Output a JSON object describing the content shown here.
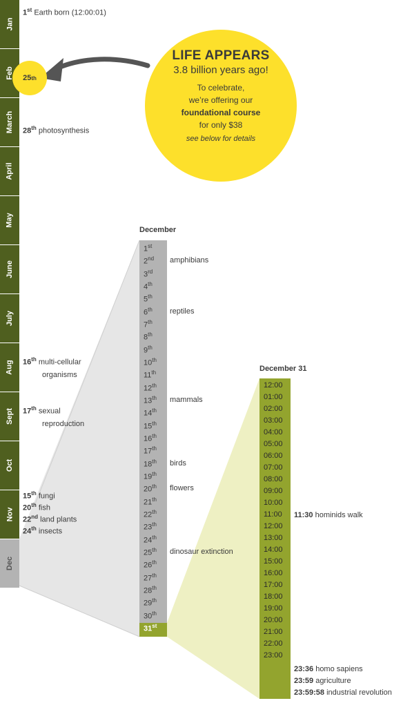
{
  "colors": {
    "olive": "#4f5f1f",
    "olive_light": "#93a42e",
    "yellow": "#fde02b",
    "grey": "#b3b3b3",
    "grey_light": "#e6e6e6",
    "yellow_light": "#eef0c3"
  },
  "months": [
    "Jan",
    "Feb",
    "March",
    "April",
    "May",
    "June",
    "July",
    "Aug",
    "Sept",
    "Oct",
    "Nov",
    "Dec"
  ],
  "year_events": {
    "jan": {
      "day": "1",
      "sup": "st",
      "text": "Earth born (12:00:01)"
    },
    "feb_dot": {
      "day": "25",
      "sup": "th"
    },
    "mar": {
      "day": "28",
      "sup": "th",
      "text": "photosynthesis"
    },
    "aug": {
      "day": "16",
      "sup": "th",
      "line1": "multi-cellular",
      "line2": "organisms"
    },
    "sept": {
      "day": "17",
      "sup": "th",
      "line1": "sexual",
      "line2": "reproduction"
    },
    "nov": [
      {
        "day": "15",
        "sup": "th",
        "text": "fungi"
      },
      {
        "day": "20",
        "sup": "th",
        "text": "fish"
      },
      {
        "day": "22",
        "sup": "nd",
        "text": "land plants"
      },
      {
        "day": "24",
        "sup": "th",
        "text": "insects"
      }
    ]
  },
  "bubble": {
    "title": "LIFE APPEARS",
    "subtitle": "3.8 billion years ago!",
    "line1": "To celebrate,",
    "line2": "we’re offering our",
    "line3": "foundational course",
    "line4": "for only $38",
    "note": "see below for details",
    "arrow_icon": "curved-arrow-left"
  },
  "december": {
    "title": "December",
    "days": [
      {
        "n": "1",
        "s": "st"
      },
      {
        "n": "2",
        "s": "nd"
      },
      {
        "n": "3",
        "s": "rd"
      },
      {
        "n": "4",
        "s": "th"
      },
      {
        "n": "5",
        "s": "th"
      },
      {
        "n": "6",
        "s": "th"
      },
      {
        "n": "7",
        "s": "th"
      },
      {
        "n": "8",
        "s": "th"
      },
      {
        "n": "9",
        "s": "th"
      },
      {
        "n": "10",
        "s": "th"
      },
      {
        "n": "11",
        "s": "th"
      },
      {
        "n": "12",
        "s": "th"
      },
      {
        "n": "13",
        "s": "th"
      },
      {
        "n": "14",
        "s": "th"
      },
      {
        "n": "15",
        "s": "th"
      },
      {
        "n": "16",
        "s": "th"
      },
      {
        "n": "17",
        "s": "th"
      },
      {
        "n": "18",
        "s": "th"
      },
      {
        "n": "19",
        "s": "th"
      },
      {
        "n": "20",
        "s": "th"
      },
      {
        "n": "21",
        "s": "th"
      },
      {
        "n": "22",
        "s": "th"
      },
      {
        "n": "23",
        "s": "th"
      },
      {
        "n": "24",
        "s": "th"
      },
      {
        "n": "25",
        "s": "th"
      },
      {
        "n": "26",
        "s": "th"
      },
      {
        "n": "27",
        "s": "th"
      },
      {
        "n": "28",
        "s": "th"
      },
      {
        "n": "29",
        "s": "th"
      },
      {
        "n": "30",
        "s": "th"
      },
      {
        "n": "31",
        "s": "st"
      }
    ],
    "events": [
      {
        "day": 2,
        "text": "amphibians"
      },
      {
        "day": 6,
        "text": "reptiles"
      },
      {
        "day": 13,
        "text": "mammals"
      },
      {
        "day": 18,
        "text": "birds"
      },
      {
        "day": 20,
        "text": "flowers"
      },
      {
        "day": 25,
        "text": "dinosaur extinction"
      }
    ]
  },
  "dec31": {
    "title": "December 31",
    "hours": [
      "12:00",
      "01:00",
      "02:00",
      "03:00",
      "04:00",
      "05:00",
      "06:00",
      "07:00",
      "08:00",
      "09:00",
      "10:00",
      "11:00",
      "12:00",
      "13:00",
      "14:00",
      "15:00",
      "16:00",
      "17:00",
      "18:00",
      "19:00",
      "20:00",
      "21:00",
      "22:00",
      "23:00"
    ],
    "events": [
      {
        "time": "11:30",
        "text": "hominids walk"
      },
      {
        "time": "23:36",
        "text": "homo sapiens"
      },
      {
        "time": "23:59",
        "text": "agriculture"
      },
      {
        "time": "23:59:58",
        "text": "industrial revolution"
      }
    ]
  }
}
